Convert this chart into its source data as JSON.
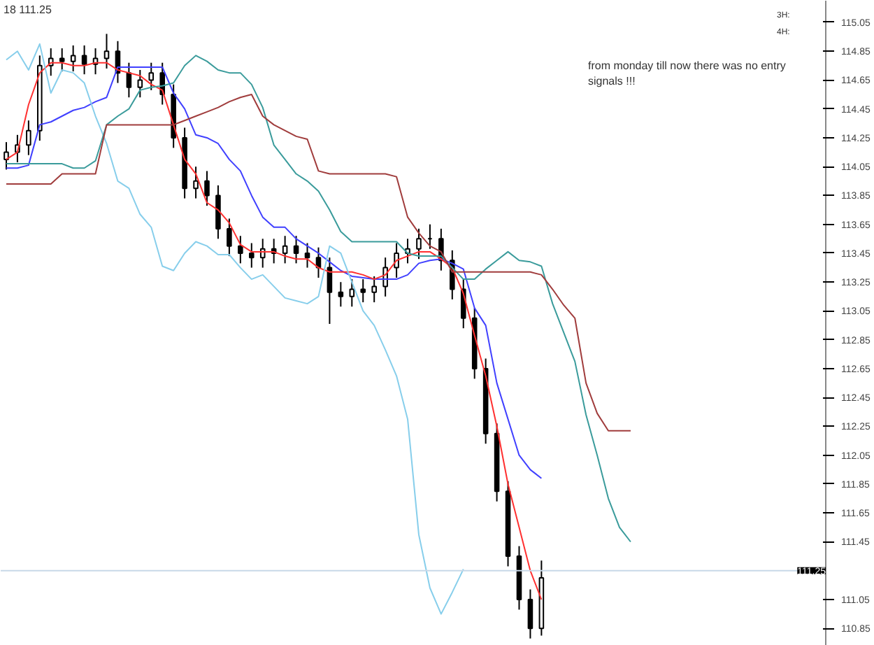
{
  "chart_data": {
    "type": "candlestick",
    "categories": [
      null,
      null,
      null,
      null,
      null,
      null,
      null,
      null,
      null,
      null,
      null,
      null,
      null,
      null,
      null,
      null,
      null,
      null,
      null,
      null,
      null,
      null,
      null,
      null,
      null,
      null,
      null,
      null,
      null,
      null,
      null,
      null,
      null,
      null,
      null,
      null,
      null,
      null,
      null,
      null,
      null,
      null,
      null,
      null,
      null,
      null,
      null,
      null,
      null,
      null,
      null,
      null,
      null,
      null,
      null,
      null,
      null,
      null,
      null,
      null,
      null,
      null,
      null,
      null,
      null,
      null,
      null,
      null,
      null,
      null,
      null,
      null,
      null,
      null
    ],
    "ohlc": [
      [
        114.1,
        114.22,
        114.03,
        114.15
      ],
      [
        114.15,
        114.27,
        114.08,
        114.2
      ],
      [
        114.2,
        114.37,
        114.13,
        114.3
      ],
      [
        114.3,
        114.82,
        114.23,
        114.75
      ],
      [
        114.75,
        114.87,
        114.68,
        114.8
      ],
      [
        114.8,
        114.87,
        114.71,
        114.78
      ],
      [
        114.78,
        114.89,
        114.71,
        114.82
      ],
      [
        114.82,
        114.89,
        114.69,
        114.76
      ],
      [
        114.76,
        114.87,
        114.69,
        114.8
      ],
      [
        114.8,
        114.97,
        114.73,
        114.85
      ],
      [
        114.85,
        114.92,
        114.63,
        114.7
      ],
      [
        114.7,
        114.77,
        114.53,
        114.6
      ],
      [
        114.6,
        114.72,
        114.53,
        114.65
      ],
      [
        114.65,
        114.77,
        114.58,
        114.7
      ],
      [
        114.7,
        114.77,
        114.48,
        114.55
      ],
      [
        114.55,
        114.62,
        114.18,
        114.25
      ],
      [
        114.25,
        114.32,
        113.83,
        113.9
      ],
      [
        113.9,
        114.05,
        113.83,
        113.95
      ],
      [
        113.95,
        114.02,
        113.78,
        113.85
      ],
      [
        113.85,
        113.92,
        113.55,
        113.62
      ],
      [
        113.62,
        113.69,
        113.43,
        113.5
      ],
      [
        113.5,
        113.57,
        113.38,
        113.45
      ],
      [
        113.45,
        113.52,
        113.35,
        113.42
      ],
      [
        113.42,
        113.55,
        113.35,
        113.48
      ],
      [
        113.48,
        113.55,
        113.38,
        113.45
      ],
      [
        113.45,
        113.57,
        113.38,
        113.5
      ],
      [
        113.5,
        113.57,
        113.38,
        113.45
      ],
      [
        113.45,
        113.52,
        113.35,
        113.42
      ],
      [
        113.42,
        113.49,
        113.28,
        113.35
      ],
      [
        113.35,
        113.42,
        112.96,
        113.18
      ],
      [
        113.18,
        113.25,
        113.08,
        113.15
      ],
      [
        113.15,
        113.27,
        113.08,
        113.2
      ],
      [
        113.2,
        113.27,
        113.11,
        113.18
      ],
      [
        113.18,
        113.29,
        113.11,
        113.22
      ],
      [
        113.22,
        113.42,
        113.15,
        113.35
      ],
      [
        113.35,
        113.52,
        113.28,
        113.45
      ],
      [
        113.45,
        113.55,
        113.38,
        113.48
      ],
      [
        113.48,
        113.62,
        113.41,
        113.55
      ],
      [
        113.55,
        113.65,
        113.48,
        113.55
      ],
      [
        113.55,
        113.62,
        113.33,
        113.4
      ],
      [
        113.4,
        113.47,
        113.13,
        113.2
      ],
      [
        113.2,
        113.27,
        112.93,
        113.0
      ],
      [
        113.0,
        113.07,
        112.58,
        112.65
      ],
      [
        112.65,
        112.72,
        112.13,
        112.2
      ],
      [
        112.2,
        112.27,
        111.73,
        111.8
      ],
      [
        111.8,
        111.87,
        111.28,
        111.35
      ],
      [
        111.35,
        111.42,
        110.98,
        111.05
      ],
      [
        111.05,
        111.12,
        110.78,
        110.85
      ],
      [
        110.85,
        111.32,
        110.8,
        111.2
      ],
      null,
      null,
      null,
      null,
      null,
      null,
      null,
      null,
      null,
      null,
      null,
      null,
      null,
      null,
      null,
      null,
      null,
      null,
      null,
      null,
      null,
      null,
      null,
      null,
      null
    ],
    "color": "#000000",
    "series": [
      {
        "type": "line",
        "color": "#4040ff",
        "values": [
          114.04,
          114.04,
          114.06,
          114.34,
          114.36,
          114.4,
          114.44,
          114.46,
          114.5,
          114.53,
          114.74,
          114.74,
          114.74,
          114.74,
          114.74,
          114.56,
          114.45,
          114.27,
          114.25,
          114.21,
          114.1,
          114.02,
          113.85,
          113.7,
          113.63,
          113.63,
          113.55,
          113.5,
          113.45,
          113.39,
          113.33,
          113.29,
          113.28,
          113.27,
          113.27,
          113.27,
          113.3,
          113.38,
          113.4,
          113.41,
          113.38,
          113.34,
          113.07,
          112.95,
          112.55,
          112.3,
          112.05,
          111.95,
          111.89,
          null,
          null,
          null,
          null,
          null,
          null,
          null,
          null,
          null,
          null,
          null,
          null,
          null,
          null,
          null,
          null,
          null,
          null,
          null,
          null,
          null,
          null,
          null,
          null,
          null
        ]
      },
      {
        "type": "line",
        "color": "#ff3030",
        "values": [
          114.1,
          114.15,
          114.48,
          114.7,
          114.77,
          114.77,
          114.75,
          114.75,
          114.77,
          114.77,
          114.72,
          114.7,
          114.68,
          114.62,
          114.58,
          114.34,
          114.1,
          114.0,
          113.8,
          113.75,
          113.66,
          113.51,
          113.46,
          113.46,
          113.46,
          113.43,
          113.41,
          113.41,
          113.35,
          113.32,
          113.32,
          113.32,
          113.3,
          113.27,
          113.3,
          113.4,
          113.43,
          113.46,
          113.46,
          113.41,
          113.35,
          113.17,
          112.88,
          112.6,
          112.25,
          111.85,
          111.55,
          111.25,
          111.05,
          null,
          null,
          null,
          null,
          null,
          null,
          null,
          null,
          null,
          null,
          null,
          null,
          null,
          null,
          null,
          null,
          null,
          null,
          null,
          null,
          null,
          null,
          null,
          null,
          null
        ]
      },
      {
        "type": "line",
        "color": "#87ceeb",
        "values": [
          114.79,
          114.85,
          114.72,
          114.9,
          114.56,
          114.72,
          114.7,
          114.63,
          114.4,
          114.21,
          113.95,
          113.9,
          113.72,
          113.63,
          113.36,
          113.33,
          113.45,
          113.53,
          113.5,
          113.44,
          113.44,
          113.35,
          113.27,
          113.3,
          113.22,
          113.14,
          113.12,
          113.1,
          113.15,
          113.5,
          113.45,
          113.25,
          113.05,
          112.95,
          112.78,
          112.6,
          112.3,
          111.5,
          111.13,
          110.95,
          111.1,
          111.26,
          null,
          null,
          null,
          null,
          null,
          null,
          null,
          null,
          null,
          null,
          null,
          null,
          null,
          null,
          null,
          null,
          null,
          null,
          null,
          null,
          null,
          null,
          null,
          null,
          null,
          null,
          null,
          null,
          null,
          null,
          null,
          null
        ]
      },
      {
        "type": "line",
        "color": "#3a9b9b",
        "values": [
          114.07,
          114.07,
          114.07,
          114.07,
          114.07,
          114.07,
          114.04,
          114.04,
          114.09,
          114.34,
          114.4,
          114.45,
          114.58,
          114.6,
          114.61,
          114.63,
          114.75,
          114.82,
          114.78,
          114.72,
          114.7,
          114.7,
          114.62,
          114.46,
          114.2,
          114.1,
          114.0,
          113.95,
          113.88,
          113.75,
          113.6,
          113.53,
          113.53,
          113.53,
          113.53,
          113.53,
          113.45,
          113.43,
          113.43,
          113.43,
          113.35,
          113.27,
          113.27,
          113.34,
          113.4,
          113.46,
          113.4,
          113.39,
          113.36,
          113.1,
          112.9,
          112.7,
          112.33,
          112.05,
          111.75,
          111.55,
          111.45,
          null,
          null,
          null,
          null,
          null,
          null,
          null,
          null,
          null,
          null,
          null,
          null,
          null,
          null,
          null,
          null,
          null
        ]
      },
      {
        "type": "line",
        "color": "#a03c3c",
        "values": [
          113.93,
          113.93,
          113.93,
          113.93,
          113.93,
          114.0,
          114.0,
          114.0,
          114.0,
          114.34,
          114.34,
          114.34,
          114.34,
          114.34,
          114.34,
          114.34,
          114.37,
          114.4,
          114.43,
          114.46,
          114.5,
          114.53,
          114.55,
          114.4,
          114.34,
          114.3,
          114.26,
          114.24,
          114.02,
          114.0,
          114.0,
          114.0,
          114.0,
          114.0,
          114.0,
          113.98,
          113.7,
          113.59,
          113.5,
          113.46,
          113.32,
          113.32,
          113.32,
          113.32,
          113.32,
          113.32,
          113.32,
          113.32,
          113.3,
          113.2,
          113.09,
          113.0,
          112.55,
          112.34,
          112.22,
          112.22,
          112.22,
          null,
          null,
          null,
          null,
          null,
          null,
          null,
          null,
          null,
          null,
          null,
          null,
          null,
          null,
          null,
          null,
          null
        ]
      }
    ],
    "ylim": [
      110.73,
      115.2
    ],
    "yticks": [
      110.85,
      111.05,
      111.45,
      111.65,
      111.85,
      112.05,
      112.25,
      112.45,
      112.65,
      112.85,
      113.05,
      113.25,
      113.45,
      113.65,
      113.85,
      114.05,
      114.25,
      114.45,
      114.65,
      114.85,
      115.05
    ],
    "ref_lines": [
      {
        "axis": "y",
        "value": 111.25,
        "label": "111.25",
        "color": "#c8d8e8"
      }
    ],
    "annotations": [
      "18 111.25",
      "from monday till now there was no entry\nsignals !!!",
      "3H:",
      "4H:"
    ],
    "grid": false,
    "tick_labels": "y"
  }
}
